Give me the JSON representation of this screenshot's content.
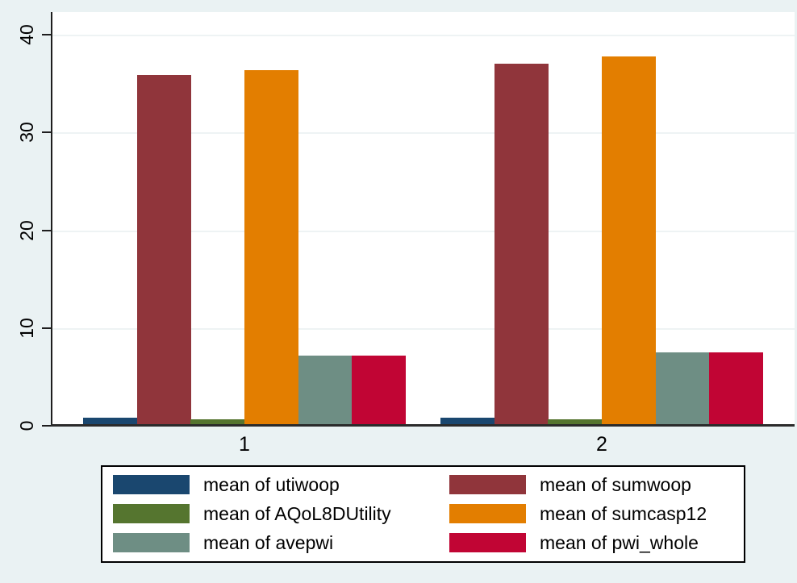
{
  "chart_data": {
    "type": "bar",
    "title": "",
    "categories": [
      "1",
      "2"
    ],
    "series": [
      {
        "name": "mean of utiwoop",
        "color": "#1a476f",
        "values": [
          0.8,
          0.8
        ]
      },
      {
        "name": "mean of sumwoop",
        "color": "#90353b",
        "values": [
          35.9,
          37.0
        ]
      },
      {
        "name": "mean of AQoL8DUtility",
        "color": "#55752f",
        "values": [
          0.7,
          0.7
        ]
      },
      {
        "name": "mean of sumcasp12",
        "color": "#e37e00",
        "values": [
          36.4,
          37.8
        ]
      },
      {
        "name": "mean of avepwi",
        "color": "#6e8e84",
        "values": [
          7.2,
          7.5
        ]
      },
      {
        "name": "mean of pwi_whole",
        "color": "#c10534",
        "values": [
          7.2,
          7.5
        ]
      }
    ],
    "xlabel": "",
    "ylabel": "",
    "yticks": [
      "0",
      "10",
      "20",
      "30",
      "40"
    ],
    "ylim": [
      0,
      42.3
    ],
    "grid": true,
    "legend_position": "bottom",
    "legend_columns": 2,
    "legend_column_order": [
      [
        "mean of utiwoop",
        "mean of AQoL8DUtility",
        "mean of avepwi"
      ],
      [
        "mean of sumwoop",
        "mean of sumcasp12",
        "mean of pwi_whole"
      ]
    ]
  },
  "colors": {
    "background": "#eaf2f3",
    "plot_background": "#ffffff",
    "gridline": "#eef3f4",
    "axis": "#1e1e1e",
    "text": "#000000",
    "legend_background": "#ffffff",
    "legend_border": "#000000"
  }
}
